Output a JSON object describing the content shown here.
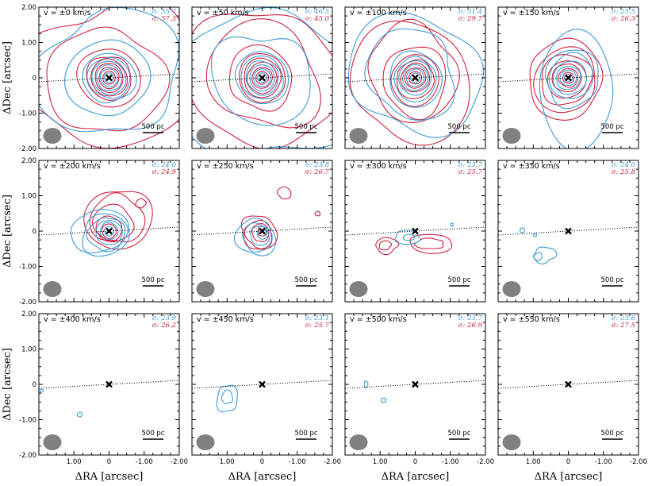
{
  "figure": {
    "y_axis_label": "ΔDec [arcsec]",
    "x_axis_label": "ΔRA [arcsec]",
    "y_tick_labels": [
      "2.00",
      "1.00",
      "0",
      "-1.00",
      "-2.00"
    ],
    "x_tick_labels": [
      "1.00",
      "0",
      "-1.00",
      "-2.00"
    ],
    "scale_bar_label": "500 pc",
    "colors": {
      "blue": "#3a9ad9",
      "red": "#d2203c",
      "beam": "#808080"
    }
  },
  "chart_data": [
    {
      "type": "contour",
      "panel": 1,
      "velocity_label": "v = ±0 km/s",
      "sigma_blue": "σ: 55.7",
      "sigma_red": "σ: 57.3",
      "xlim": [
        2.0,
        -2.0
      ],
      "ylim": [
        -2.0,
        2.0
      ],
      "blue_extent": "large",
      "red_extent": "large",
      "blue_levels": 8,
      "red_levels": 8
    },
    {
      "type": "contour",
      "panel": 2,
      "velocity_label": "v = ±50 km/s",
      "sigma_blue": "σ: 46.5",
      "sigma_red": "σ: 45.0",
      "xlim": [
        2.0,
        -2.0
      ],
      "ylim": [
        -2.0,
        2.0
      ],
      "blue_levels": 8,
      "red_levels": 8
    },
    {
      "type": "contour",
      "panel": 3,
      "velocity_label": "v = ±100 km/s",
      "sigma_blue": "σ: 31.4",
      "sigma_red": "σ: 29.7",
      "xlim": [
        2.0,
        -2.0
      ],
      "ylim": [
        -2.0,
        2.0
      ],
      "blue_levels": 8,
      "red_levels": 8
    },
    {
      "type": "contour",
      "panel": 4,
      "velocity_label": "v = ±150 km/s",
      "sigma_blue": "σ: 25.5",
      "sigma_red": "σ: 26.3",
      "xlim": [
        2.0,
        -2.0
      ],
      "ylim": [
        -2.0,
        2.0
      ],
      "blue_levels": 7,
      "red_levels": 7
    },
    {
      "type": "contour",
      "panel": 5,
      "velocity_label": "v = ±200 km/s",
      "sigma_blue": "σ: 24.0",
      "sigma_red": "σ: 24.9",
      "xlim": [
        2.0,
        -2.0
      ],
      "ylim": [
        -2.0,
        2.0
      ],
      "blue_levels": 6,
      "red_levels": 6
    },
    {
      "type": "contour",
      "panel": 6,
      "velocity_label": "v = ±250 km/s",
      "sigma_blue": "σ: 23.8",
      "sigma_red": "σ: 26.7",
      "xlim": [
        2.0,
        -2.0
      ],
      "ylim": [
        -2.0,
        2.0
      ],
      "blue_levels": 4,
      "red_levels": 4
    },
    {
      "type": "contour",
      "panel": 7,
      "velocity_label": "v = ±300 km/s",
      "sigma_blue": "σ: 23.7",
      "sigma_red": "σ: 25.7",
      "xlim": [
        2.0,
        -2.0
      ],
      "ylim": [
        -2.0,
        2.0
      ],
      "blue_levels": 2,
      "red_levels": 2
    },
    {
      "type": "contour",
      "panel": 8,
      "velocity_label": "v = ±350 km/s",
      "sigma_blue": "σ: 24.0",
      "sigma_red": "σ: 25.8",
      "xlim": [
        2.0,
        -2.0
      ],
      "ylim": [
        -2.0,
        2.0
      ],
      "blue_levels": 2,
      "red_levels": 0
    },
    {
      "type": "contour",
      "panel": 9,
      "velocity_label": "v = ±400 km/s",
      "sigma_blue": "σ: 23.9",
      "sigma_red": "σ: 26.2",
      "xlim": [
        2.0,
        -2.0
      ],
      "ylim": [
        -2.0,
        2.0
      ],
      "blue_levels": 1,
      "red_levels": 0
    },
    {
      "type": "contour",
      "panel": 10,
      "velocity_label": "v = ±450 km/s",
      "sigma_blue": "σ: 23.1",
      "sigma_red": "σ: 25.7",
      "xlim": [
        2.0,
        -2.0
      ],
      "ylim": [
        -2.0,
        2.0
      ],
      "blue_levels": 2,
      "red_levels": 0
    },
    {
      "type": "contour",
      "panel": 11,
      "velocity_label": "v = ±500 km/s",
      "sigma_blue": "σ: 23.7",
      "sigma_red": "σ: 26.9",
      "xlim": [
        2.0,
        -2.0
      ],
      "ylim": [
        -2.0,
        2.0
      ],
      "blue_levels": 1,
      "red_levels": 0
    },
    {
      "type": "contour",
      "panel": 12,
      "velocity_label": "v = ±550 km/s",
      "sigma_blue": "σ: 23.6",
      "sigma_red": "σ: 27.5",
      "xlim": [
        2.0,
        -2.0
      ],
      "ylim": [
        -2.0,
        2.0
      ],
      "blue_levels": 0,
      "red_levels": 0
    }
  ]
}
